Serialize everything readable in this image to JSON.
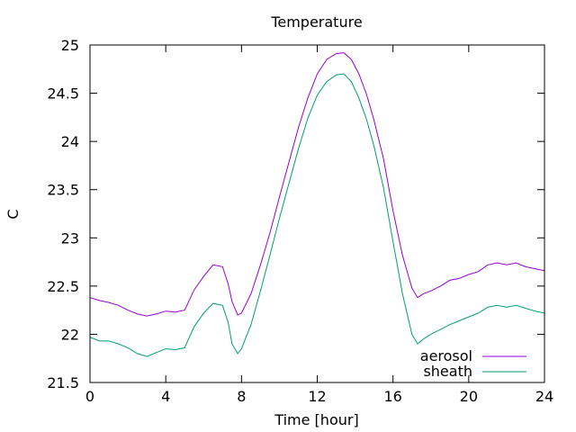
{
  "chart_data": {
    "type": "line",
    "title": "Temperature",
    "xlabel": "Time [hour]",
    "ylabel": "C",
    "xlim": [
      0,
      24
    ],
    "ylim": [
      21.5,
      25
    ],
    "xticks": [
      0,
      4,
      8,
      12,
      16,
      20,
      24
    ],
    "yticks": [
      21.5,
      22,
      22.5,
      23,
      23.5,
      24,
      24.5,
      25
    ],
    "ytick_labels": [
      "21.5",
      "22",
      "22.5",
      "23",
      "23.5",
      "24",
      "24.5",
      "25"
    ],
    "grid": false,
    "legend_position": "bottom-right",
    "series": [
      {
        "name": "aerosol",
        "color": "#9400d3",
        "x": [
          0,
          0.5,
          1,
          1.5,
          2,
          2.5,
          3,
          3.5,
          4,
          4.5,
          5,
          5.5,
          6,
          6.5,
          7,
          7.3,
          7.5,
          7.8,
          8,
          8.5,
          9,
          9.5,
          10,
          10.5,
          11,
          11.5,
          12,
          12.5,
          13,
          13.4,
          13.8,
          14.2,
          14.6,
          15,
          15.5,
          16,
          16.5,
          17,
          17.3,
          17.6,
          18,
          18.5,
          19,
          19.5,
          20,
          20.5,
          21,
          21.5,
          22,
          22.5,
          23,
          23.5,
          24
        ],
        "y": [
          22.38,
          22.35,
          22.33,
          22.3,
          22.25,
          22.21,
          22.19,
          22.21,
          22.24,
          22.23,
          22.25,
          22.46,
          22.6,
          22.72,
          22.7,
          22.52,
          22.34,
          22.2,
          22.22,
          22.42,
          22.72,
          23.05,
          23.42,
          23.78,
          24.14,
          24.45,
          24.7,
          24.85,
          24.91,
          24.92,
          24.85,
          24.7,
          24.49,
          24.22,
          23.82,
          23.28,
          22.82,
          22.48,
          22.38,
          22.42,
          22.45,
          22.5,
          22.56,
          22.58,
          22.62,
          22.65,
          22.72,
          22.74,
          22.72,
          22.74,
          22.7,
          22.68,
          22.66
        ]
      },
      {
        "name": "sheath",
        "color": "#009e73",
        "x": [
          0,
          0.5,
          1,
          1.5,
          2,
          2.5,
          3,
          3.5,
          4,
          4.5,
          5,
          5.5,
          6,
          6.5,
          7,
          7.3,
          7.5,
          7.8,
          8,
          8.5,
          9,
          9.5,
          10,
          10.5,
          11,
          11.5,
          12,
          12.5,
          13,
          13.4,
          13.8,
          14.2,
          14.6,
          15,
          15.5,
          16,
          16.5,
          17,
          17.3,
          17.6,
          18,
          18.5,
          19,
          19.5,
          20,
          20.5,
          21,
          21.5,
          22,
          22.5,
          23,
          23.5,
          24
        ],
        "y": [
          21.97,
          21.93,
          21.93,
          21.9,
          21.86,
          21.8,
          21.77,
          21.81,
          21.85,
          21.84,
          21.86,
          22.08,
          22.22,
          22.32,
          22.3,
          22.12,
          21.9,
          21.8,
          21.85,
          22.1,
          22.45,
          22.82,
          23.2,
          23.56,
          23.92,
          24.24,
          24.48,
          24.62,
          24.69,
          24.7,
          24.62,
          24.45,
          24.23,
          23.95,
          23.52,
          22.96,
          22.42,
          22.0,
          21.9,
          21.95,
          22.0,
          22.05,
          22.1,
          22.14,
          22.18,
          22.22,
          22.28,
          22.3,
          22.28,
          22.3,
          22.27,
          22.24,
          22.22
        ]
      }
    ]
  }
}
